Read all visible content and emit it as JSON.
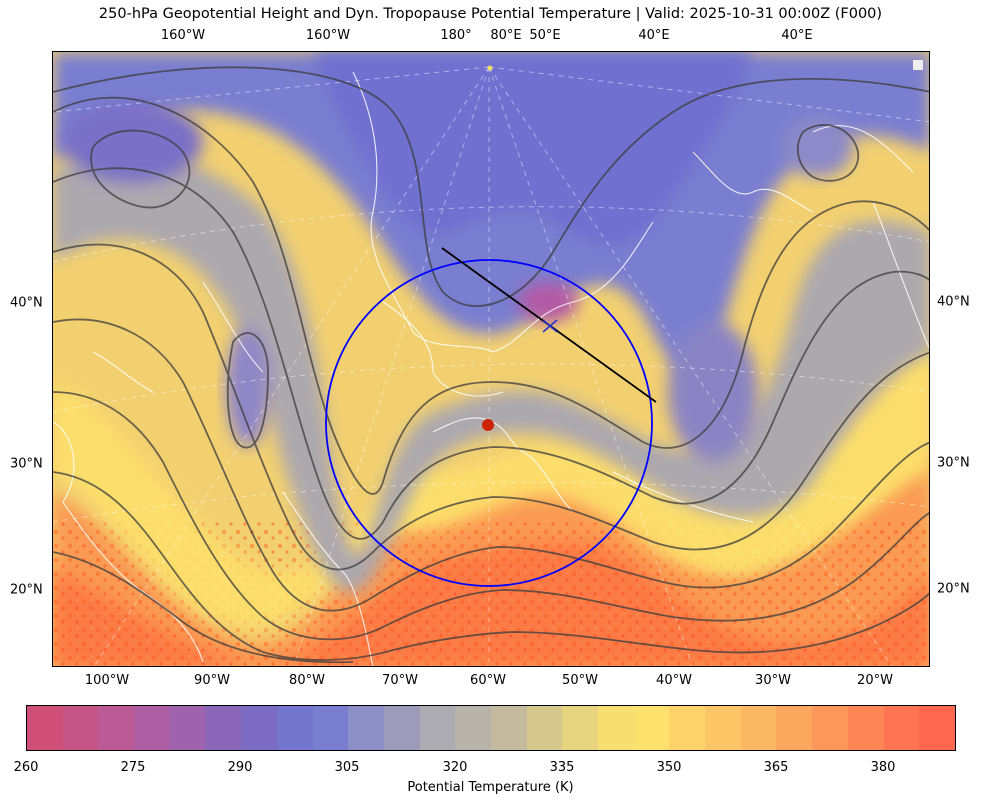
{
  "title": "250-hPa Geopotential Height and Dyn. Tropopause Potential Temperature   |  Valid: 2025-10-31 00:00Z (F000)",
  "top_labels": [
    "160°W",
    "160°W",
    "180°",
    "80°E",
    "50°E",
    "40°E",
    "40°E"
  ],
  "bottom_labels": [
    "100°W",
    "90°W",
    "80°W",
    "70°W",
    "60°W",
    "50°W",
    "40°W",
    "30°W",
    "20°W"
  ],
  "left_labels": [
    "40°N",
    "30°N",
    "20°N"
  ],
  "right_labels": [
    "40°N",
    "30°N",
    "20°N"
  ],
  "colorbar": {
    "label": "Potential Temperature (K)",
    "ticks": [
      "260",
      "275",
      "290",
      "305",
      "320",
      "335",
      "350",
      "365",
      "380"
    ],
    "colors": [
      "#cf4f78",
      "#c65587",
      "#bb5a95",
      "#ae5ea2",
      "#9f62ad",
      "#8c66b8",
      "#7c6bc2",
      "#7475cc",
      "#7a7ed0",
      "#8c90c6",
      "#9c9cba",
      "#adabb3",
      "#b8b3aa",
      "#c4bb9e",
      "#d5c88e",
      "#e6d47e",
      "#f6de70",
      "#fce26c",
      "#fdd46a",
      "#fcc666",
      "#fbb862",
      "#fba85e",
      "#fb975a",
      "#fc8656",
      "#fd7552",
      "#fe684e"
    ]
  },
  "colors": {
    "circle": "#0000ff",
    "cross_section_line": "#000000",
    "center_marker": "#cc2200",
    "height_contours": "#3d3d3d",
    "coastlines": "#ffffff"
  }
}
